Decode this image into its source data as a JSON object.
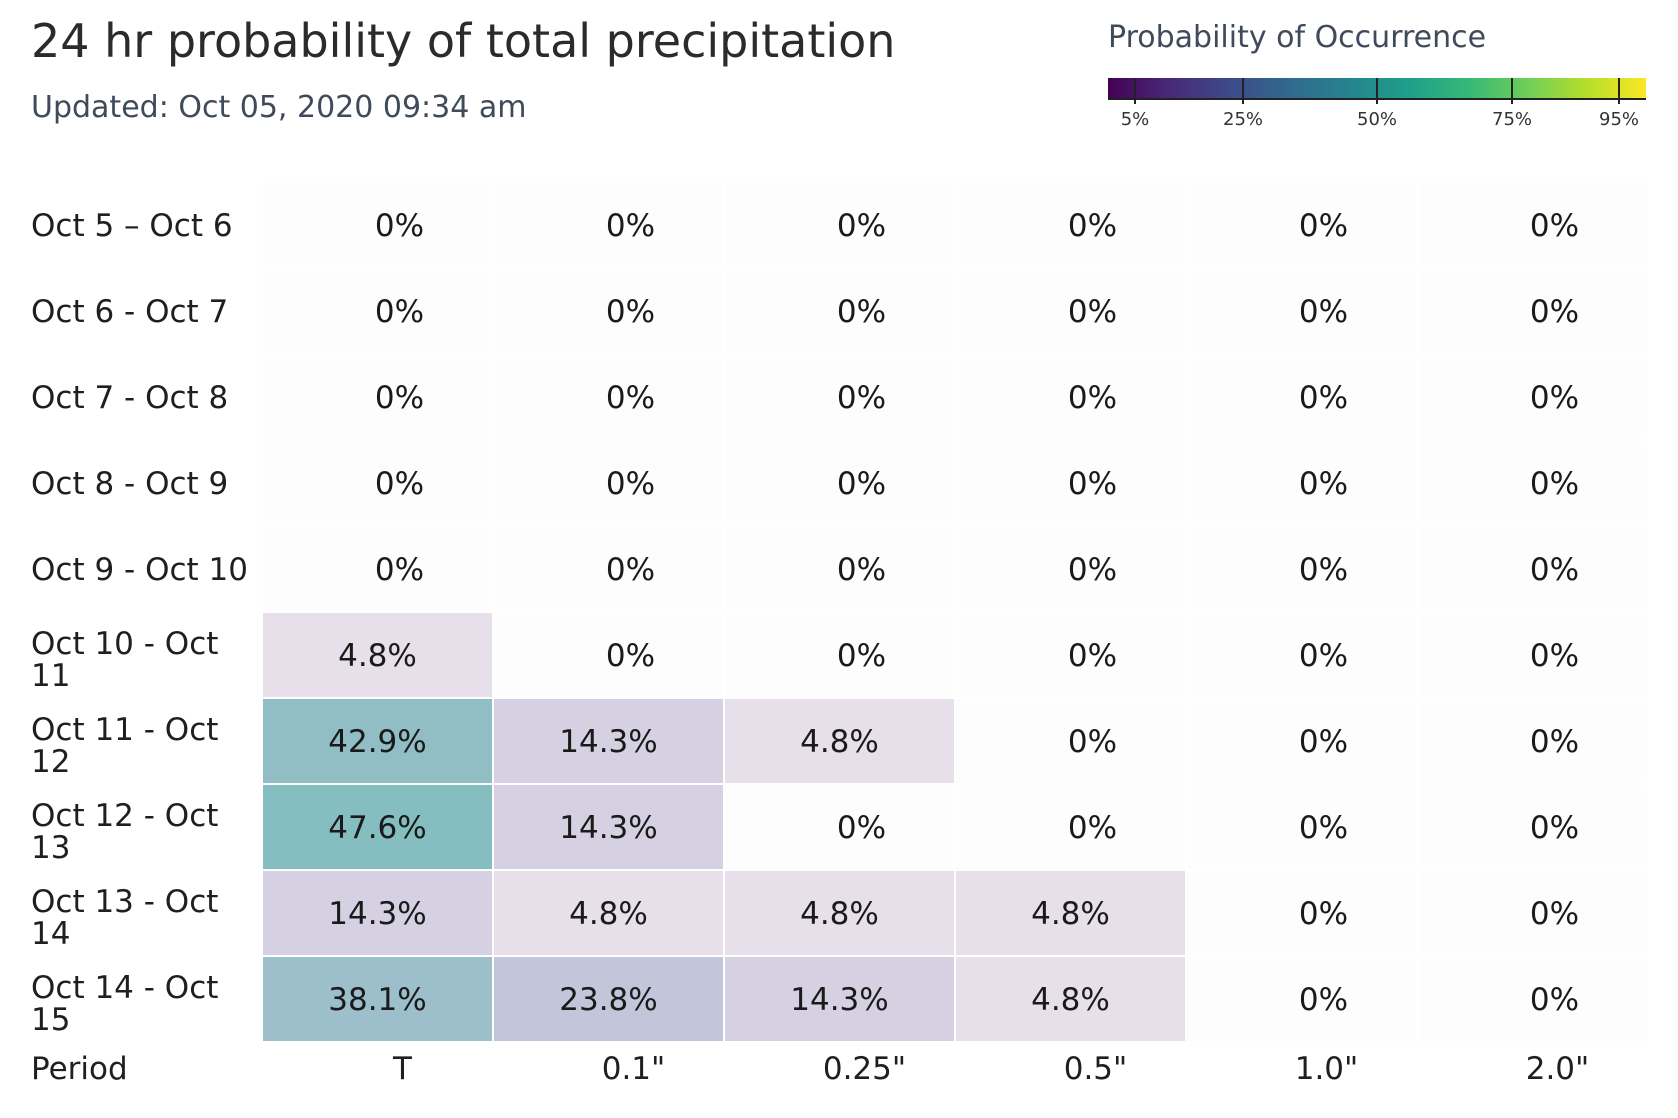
{
  "header": {
    "title": "24 hr probability of total precipitation",
    "updated": "Updated: Oct 05, 2020 09:34 am"
  },
  "legend": {
    "title": "Probability of Occurrence",
    "ticks": [
      {
        "value": 5,
        "label": "5%"
      },
      {
        "value": 25,
        "label": "25%"
      },
      {
        "value": 50,
        "label": "50%"
      },
      {
        "value": 75,
        "label": "75%"
      },
      {
        "value": 95,
        "label": "95%"
      }
    ],
    "range": [
      0,
      100
    ],
    "colormap": "viridis"
  },
  "chart_data": {
    "type": "heatmap",
    "xlabel": "Period",
    "columns": [
      "T",
      "0.1\"",
      "0.25\"",
      "0.5\"",
      "1.0\"",
      "2.0\""
    ],
    "rows": [
      {
        "period": [
          "Oct 5 – Oct 6"
        ],
        "values": [
          0,
          0,
          0,
          0,
          0,
          0
        ]
      },
      {
        "period": [
          "Oct 6 - Oct 7"
        ],
        "values": [
          0,
          0,
          0,
          0,
          0,
          0
        ]
      },
      {
        "period": [
          "Oct 7 - Oct 8"
        ],
        "values": [
          0,
          0,
          0,
          0,
          0,
          0
        ]
      },
      {
        "period": [
          "Oct 8 - Oct 9"
        ],
        "values": [
          0,
          0,
          0,
          0,
          0,
          0
        ]
      },
      {
        "period": [
          "Oct 9 - Oct 10"
        ],
        "values": [
          0,
          0,
          0,
          0,
          0,
          0
        ]
      },
      {
        "period": [
          "Oct 10 - Oct",
          "11"
        ],
        "values": [
          4.8,
          0,
          0,
          0,
          0,
          0
        ]
      },
      {
        "period": [
          "Oct 11 - Oct",
          "12"
        ],
        "values": [
          42.9,
          14.3,
          4.8,
          0,
          0,
          0
        ]
      },
      {
        "period": [
          "Oct 12 - Oct",
          "13"
        ],
        "values": [
          47.6,
          14.3,
          0,
          0,
          0,
          0
        ]
      },
      {
        "period": [
          "Oct 13 - Oct",
          "14"
        ],
        "values": [
          14.3,
          4.8,
          4.8,
          4.8,
          0,
          0
        ]
      },
      {
        "period": [
          "Oct 14 - Oct",
          "15"
        ],
        "values": [
          38.1,
          23.8,
          14.3,
          4.8,
          0,
          0
        ]
      }
    ],
    "value_format": "percent, one decimal; zero shown as 0%"
  }
}
